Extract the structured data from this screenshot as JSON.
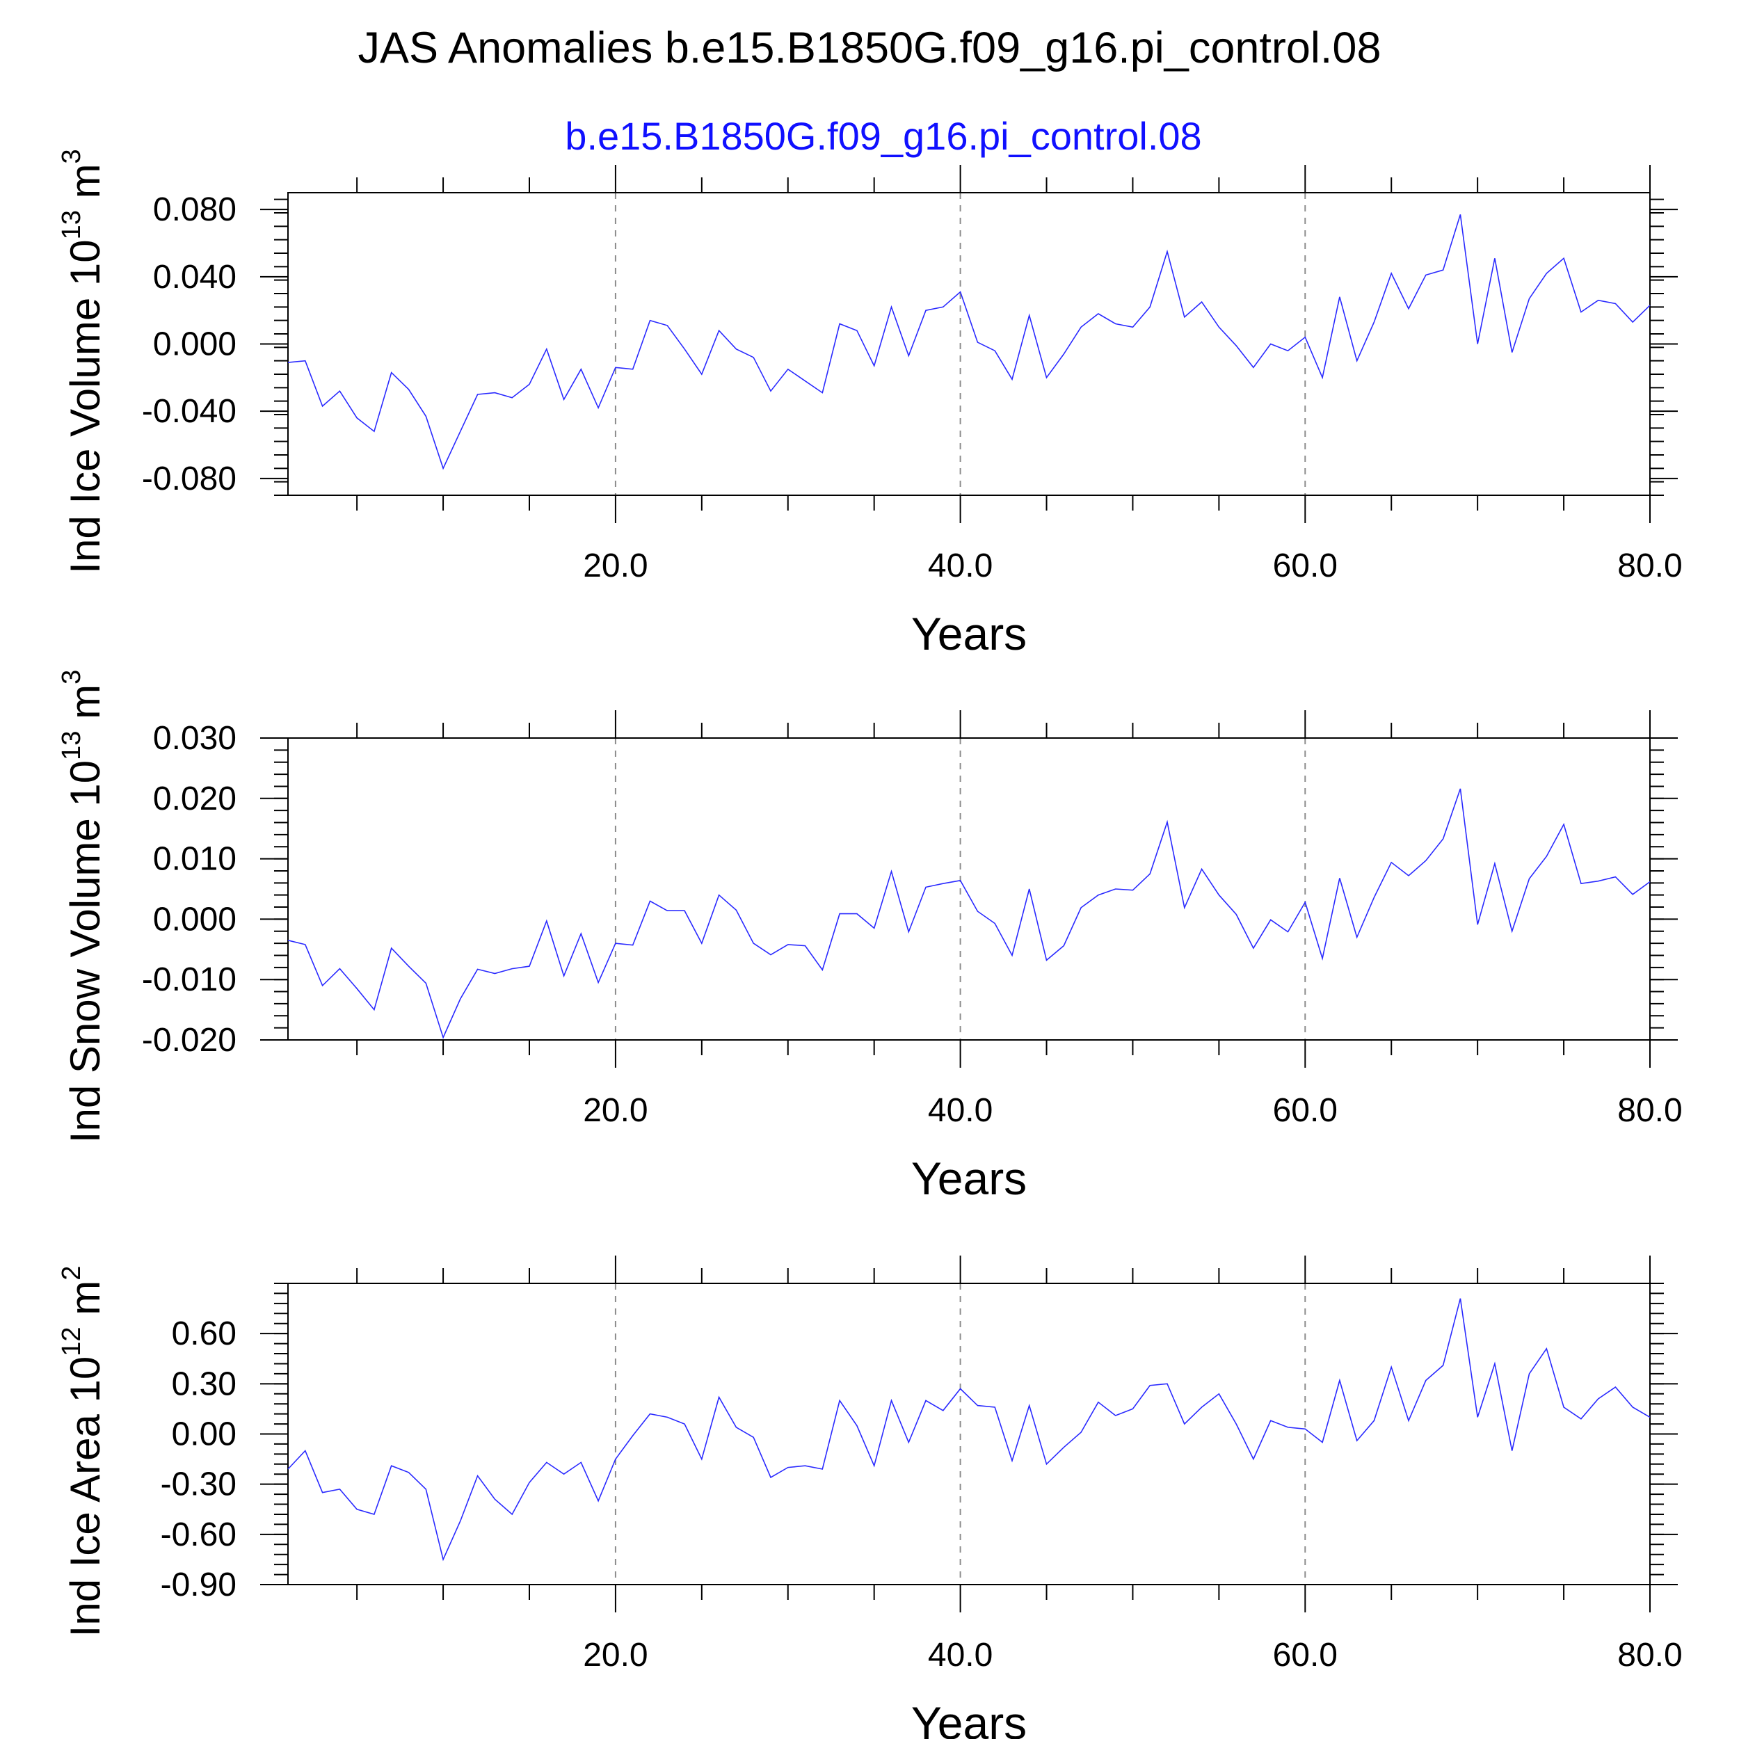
{
  "title": "JAS Anomalies b.e15.B1850G.f09_g16.pi_control.08",
  "subtitle": "b.e15.B1850G.f09_g16.pi_control.08",
  "colors": {
    "series": "#2a2aff",
    "subtitle": "#1010ff",
    "axis": "#000000",
    "grid": "#8c8c8c"
  },
  "chart_data": [
    {
      "type": "line",
      "ylabel": {
        "main": "Ind Ice Volume 10",
        "exp": "13",
        "unit": " m",
        "unit_exp": "3"
      },
      "xlabel": "Years",
      "xlim": [
        1,
        80
      ],
      "xticks": [
        20,
        40,
        60,
        80
      ],
      "xtick_labels": [
        "20.0",
        "40.0",
        "60.0",
        "80.0"
      ],
      "ylim": [
        -0.09,
        0.09
      ],
      "yticks": [
        -0.08,
        -0.04,
        0.0,
        0.04,
        0.08
      ],
      "ytick_labels": [
        "-0.080",
        "-0.040",
        "0.000",
        "0.040",
        "0.080"
      ],
      "grid": "vertical dashed at major x ticks",
      "x_start": 1,
      "values": [
        -0.011,
        -0.01,
        -0.037,
        -0.028,
        -0.044,
        -0.052,
        -0.017,
        -0.027,
        -0.043,
        -0.074,
        -0.052,
        -0.03,
        -0.029,
        -0.032,
        -0.024,
        -0.003,
        -0.033,
        -0.015,
        -0.038,
        -0.014,
        -0.015,
        0.014,
        0.011,
        -0.003,
        -0.018,
        0.008,
        -0.003,
        -0.008,
        -0.028,
        -0.015,
        -0.022,
        -0.029,
        0.012,
        0.008,
        -0.013,
        0.022,
        -0.007,
        0.02,
        0.022,
        0.031,
        0.001,
        -0.004,
        -0.021,
        0.017,
        -0.02,
        -0.006,
        0.01,
        0.018,
        0.012,
        0.01,
        0.022,
        0.055,
        0.016,
        0.025,
        0.01,
        -0.001,
        -0.014,
        0.0,
        -0.004,
        0.004,
        -0.02,
        0.028,
        -0.01,
        0.013,
        0.042,
        0.021,
        0.041,
        0.044,
        0.077,
        0.0,
        0.051,
        -0.005,
        0.027,
        0.042,
        0.051,
        0.019,
        0.026,
        0.024,
        0.013,
        0.023
      ]
    },
    {
      "type": "line",
      "ylabel": {
        "main": "Ind Snow Volume 10",
        "exp": "13",
        "unit": " m",
        "unit_exp": "3"
      },
      "xlabel": "Years",
      "xlim": [
        1,
        80
      ],
      "xticks": [
        20,
        40,
        60,
        80
      ],
      "xtick_labels": [
        "20.0",
        "40.0",
        "60.0",
        "80.0"
      ],
      "ylim": [
        -0.02,
        0.03
      ],
      "yticks": [
        -0.02,
        -0.01,
        0.0,
        0.01,
        0.02,
        0.03
      ],
      "ytick_labels": [
        "-0.020",
        "-0.010",
        "0.000",
        "0.010",
        "0.020",
        "0.030"
      ],
      "grid": "vertical dashed at major x ticks",
      "x_start": 1,
      "values": [
        -0.0035,
        -0.0042,
        -0.011,
        -0.0082,
        -0.0115,
        -0.015,
        -0.0048,
        -0.0078,
        -0.0106,
        -0.0196,
        -0.0132,
        -0.0083,
        -0.009,
        -0.0082,
        -0.0078,
        -0.0003,
        -0.0094,
        -0.0024,
        -0.0105,
        -0.004,
        -0.0043,
        0.003,
        0.0014,
        0.0014,
        -0.004,
        0.004,
        0.0015,
        -0.004,
        -0.0059,
        -0.0042,
        -0.0044,
        -0.0084,
        0.0009,
        0.0009,
        -0.0015,
        0.0079,
        -0.0021,
        0.0053,
        0.0059,
        0.0064,
        0.0013,
        -0.0007,
        -0.006,
        0.005,
        -0.0068,
        -0.0044,
        0.0019,
        0.004,
        0.005,
        0.0048,
        0.0075,
        0.0161,
        0.0019,
        0.0083,
        0.004,
        0.0008,
        -0.0048,
        -0.0001,
        -0.0021,
        0.0028,
        -0.0065,
        0.0068,
        -0.003,
        0.0036,
        0.0094,
        0.0072,
        0.0097,
        0.0133,
        0.0216,
        -0.0009,
        0.0092,
        -0.002,
        0.0067,
        0.0104,
        0.0157,
        0.0059,
        0.0063,
        0.007,
        0.0041,
        0.0062
      ]
    },
    {
      "type": "line",
      "ylabel": {
        "main": "Ind Ice Area 10",
        "exp": "12",
        "unit": " m",
        "unit_exp": "2"
      },
      "xlabel": "Years",
      "xlim": [
        1,
        80
      ],
      "xticks": [
        20,
        40,
        60,
        80
      ],
      "xtick_labels": [
        "20.0",
        "40.0",
        "60.0",
        "80.0"
      ],
      "ylim": [
        -0.9,
        0.9
      ],
      "yticks": [
        -0.9,
        -0.6,
        -0.3,
        0.0,
        0.3,
        0.6
      ],
      "ytick_labels": [
        "-0.90",
        "-0.60",
        "-0.30",
        "0.00",
        "0.30",
        "0.60"
      ],
      "grid": "vertical dashed at major x ticks",
      "x_start": 1,
      "values": [
        -0.21,
        -0.1,
        -0.35,
        -0.33,
        -0.45,
        -0.48,
        -0.19,
        -0.23,
        -0.33,
        -0.75,
        -0.52,
        -0.25,
        -0.39,
        -0.48,
        -0.29,
        -0.17,
        -0.24,
        -0.17,
        -0.4,
        -0.15,
        -0.01,
        0.12,
        0.1,
        0.06,
        -0.15,
        0.22,
        0.04,
        -0.02,
        -0.26,
        -0.2,
        -0.19,
        -0.21,
        0.2,
        0.05,
        -0.19,
        0.2,
        -0.05,
        0.2,
        0.14,
        0.27,
        0.17,
        0.16,
        -0.16,
        0.17,
        -0.18,
        -0.08,
        0.01,
        0.19,
        0.11,
        0.15,
        0.29,
        0.3,
        0.06,
        0.16,
        0.24,
        0.06,
        -0.15,
        0.08,
        0.04,
        0.03,
        -0.05,
        0.32,
        -0.04,
        0.08,
        0.4,
        0.08,
        0.32,
        0.41,
        0.81,
        0.1,
        0.42,
        -0.1,
        0.36,
        0.51,
        0.16,
        0.09,
        0.21,
        0.28,
        0.16,
        0.1
      ]
    }
  ]
}
